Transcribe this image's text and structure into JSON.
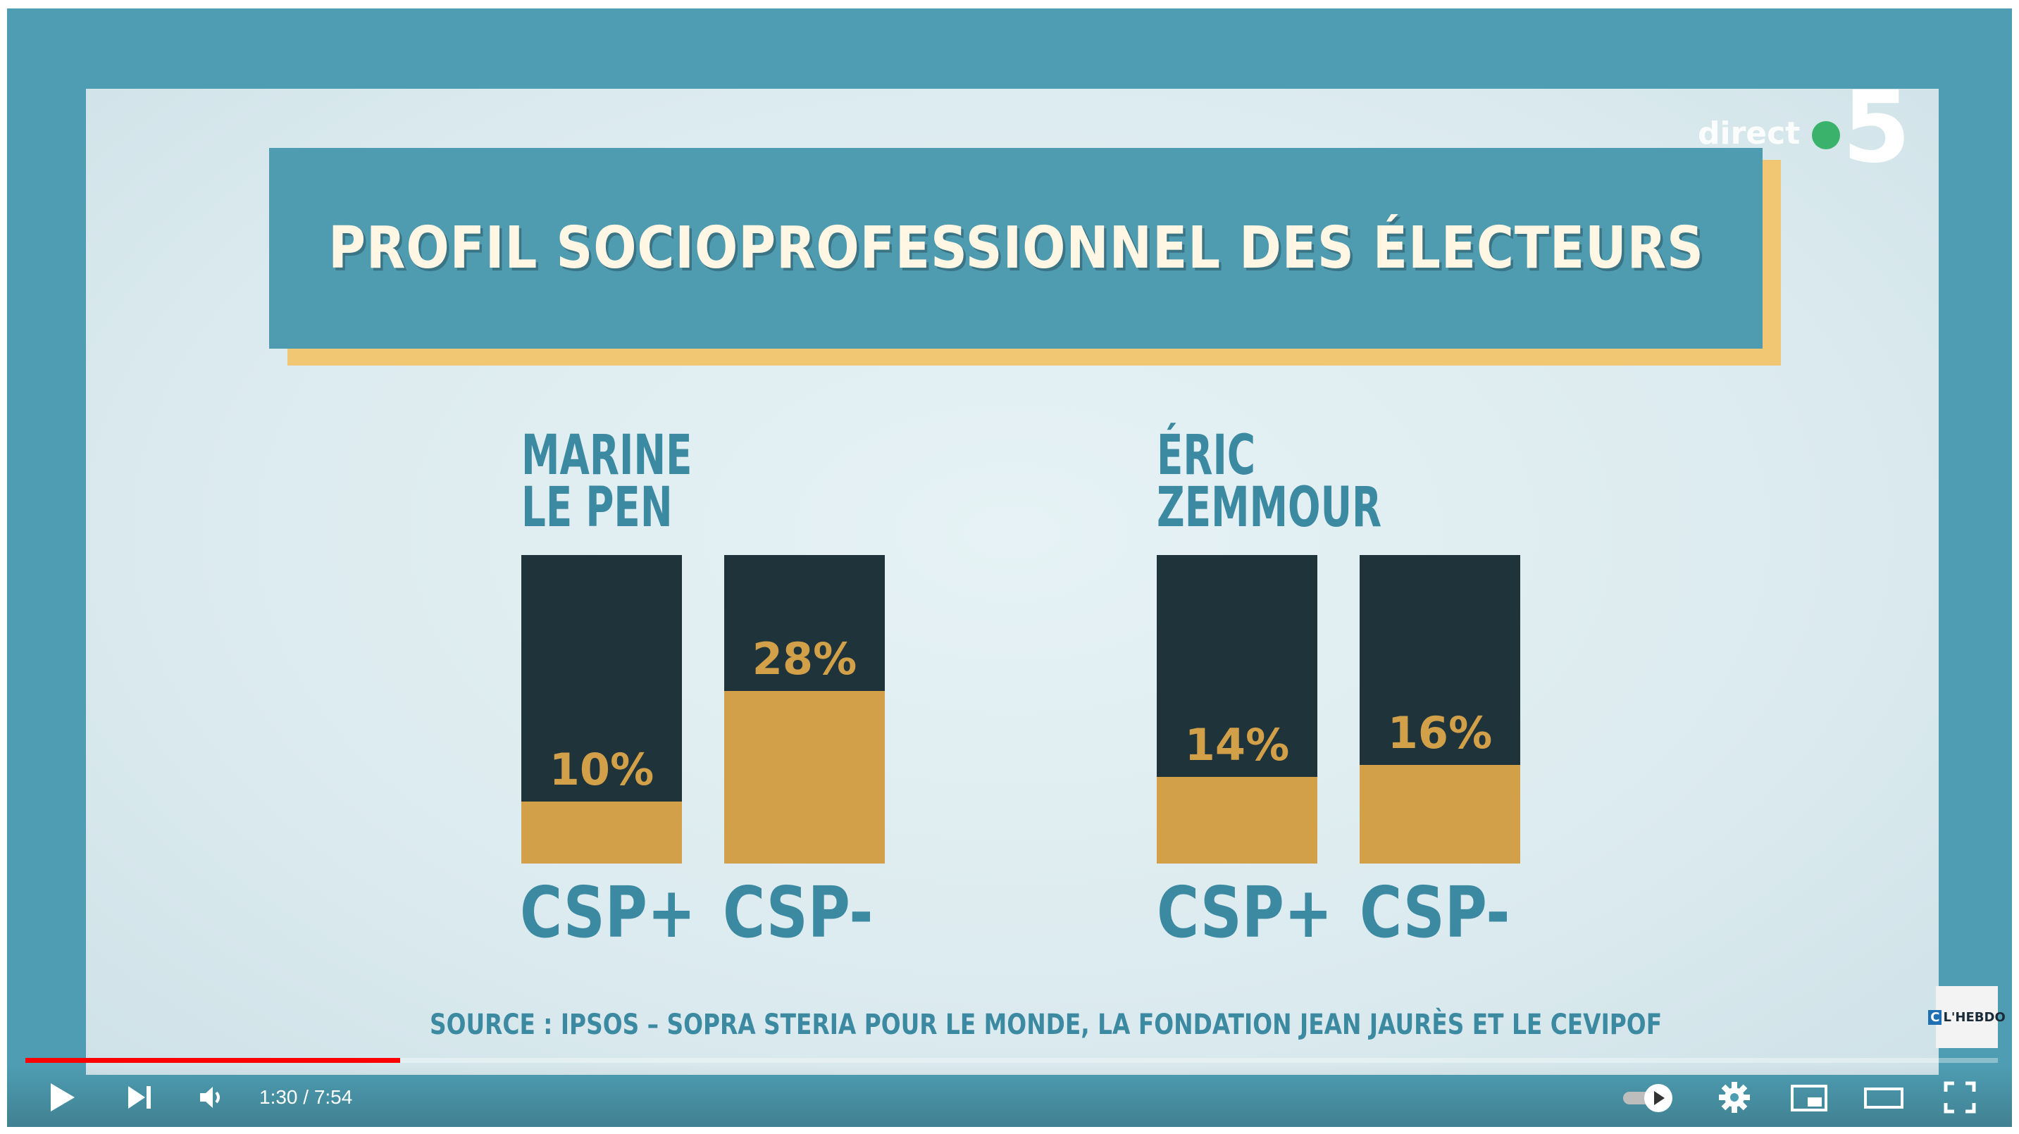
{
  "title": "PROFIL SOCIOPROFESSIONNEL DES ÉLECTEURS",
  "channel": {
    "direct_label": "direct",
    "number": "5"
  },
  "candidates": [
    {
      "name_line1": "MARINE",
      "name_line2": "LE PEN"
    },
    {
      "name_line1": "ÉRIC",
      "name_line2": "ZEMMOUR"
    }
  ],
  "chart_data": {
    "type": "bar",
    "title": "PROFIL SOCIOPROFESSIONNEL DES ÉLECTEURS",
    "categories": [
      "CSP+",
      "CSP-"
    ],
    "series": [
      {
        "name": "MARINE LE PEN",
        "values": [
          10,
          28
        ],
        "labels": [
          "10%",
          "28%"
        ]
      },
      {
        "name": "ÉRIC ZEMMOUR",
        "values": [
          14,
          16
        ],
        "labels": [
          "14%",
          "16%"
        ]
      }
    ],
    "unit": "%",
    "grid": false,
    "colors": {
      "fill": "#d3a04a",
      "background_bar": "#1f343a",
      "text": "#3c8aa2"
    }
  },
  "source": "SOURCE : IPSOS – SOPRA STERIA POUR LE MONDE, LA FONDATION JEAN JAURÈS ET LE CEVIPOF",
  "badge": {
    "c": "C",
    "text": "L'HEBDO"
  },
  "player": {
    "time": "1:30 / 7:54",
    "progress": 0.19,
    "icons": [
      "play-icon",
      "next-icon",
      "volume-icon",
      "autoplay-toggle-icon",
      "settings-gear-icon",
      "miniplayer-icon",
      "theater-mode-icon",
      "fullscreen-icon"
    ]
  }
}
